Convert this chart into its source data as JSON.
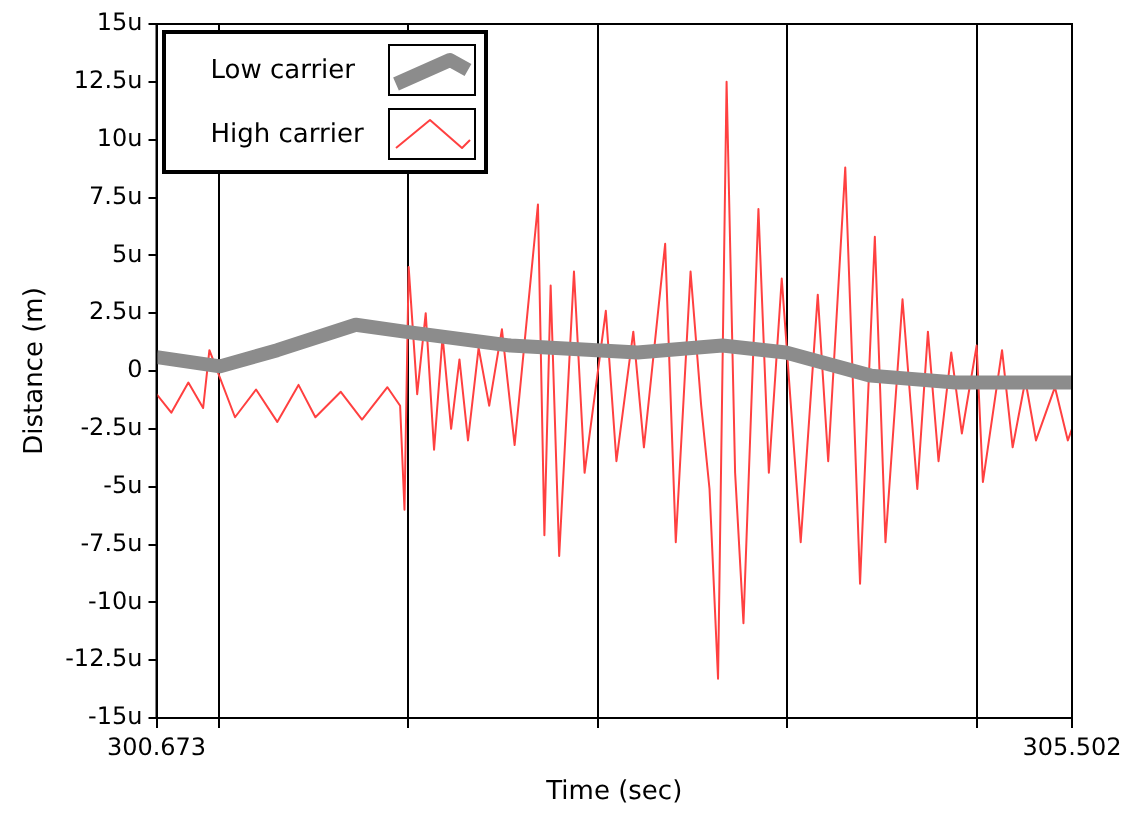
{
  "chart_data": {
    "type": "line",
    "xlabel": "Time (sec)",
    "ylabel": "Distance (m)",
    "xlim": [
      300.673,
      305.502
    ],
    "xticks": [
      300.673,
      {
        "value": 301,
        "label": null
      },
      {
        "value": 302,
        "label": null
      },
      {
        "value": 303,
        "label": null
      },
      {
        "value": 304,
        "label": null
      },
      {
        "value": 305,
        "label": null
      },
      305.502
    ],
    "ylim": [
      -15,
      15
    ],
    "yticks": [
      {
        "value": -15,
        "label": "-15u"
      },
      {
        "value": -12.5,
        "label": "-12.5u"
      },
      {
        "value": -10,
        "label": "-10u"
      },
      {
        "value": -7.5,
        "label": "-7.5u"
      },
      {
        "value": -5,
        "label": "-5u"
      },
      {
        "value": -2.5,
        "label": "-2.5u"
      },
      0,
      {
        "value": 2.5,
        "label": "2.5u"
      },
      {
        "value": 5,
        "label": "5u"
      },
      {
        "value": 7.5,
        "label": "7.5u"
      },
      {
        "value": 10,
        "label": "10u"
      },
      {
        "value": 12.5,
        "label": "12.5u"
      },
      {
        "value": 15,
        "label": "15u"
      }
    ],
    "grid": "x",
    "legend": "top left",
    "marker": "none",
    "line_style": "solid",
    "series": [
      {
        "name": "Low carrier",
        "color": "#8c8c8c",
        "x": [
          300.673,
          301.008,
          301.31,
          301.724,
          301.981,
          302.54,
          303.21,
          303.658,
          303.993,
          304.44,
          304.887,
          305.502
        ],
        "values": [
          0.6,
          0.2,
          0.9,
          2,
          1.7,
          1.1,
          0.8,
          1.1,
          0.8,
          -0.2,
          -0.5,
          -0.5
        ]
      },
      {
        "name": "High carrier",
        "color": "#ff4040",
        "x": [
          300.673,
          300.751,
          300.841,
          300.919,
          300.952,
          301.087,
          301.198,
          301.31,
          301.422,
          301.511,
          301.645,
          301.757,
          301.891,
          301.958,
          301.981,
          302.003,
          302.048,
          302.093,
          302.137,
          302.182,
          302.227,
          302.271,
          302.316,
          302.372,
          302.428,
          302.495,
          302.562,
          302.685,
          302.719,
          302.752,
          302.797,
          302.875,
          302.931,
          303.043,
          303.099,
          303.188,
          303.244,
          303.356,
          303.412,
          303.49,
          303.546,
          303.59,
          303.635,
          303.68,
          303.725,
          303.769,
          303.848,
          303.903,
          303.971,
          304.071,
          304.161,
          304.216,
          304.306,
          304.384,
          304.462,
          304.518,
          304.608,
          304.686,
          304.742,
          304.798,
          304.865,
          304.921,
          304.999,
          305.032,
          305.133,
          305.189,
          305.256,
          305.312,
          305.412,
          305.48,
          305.502
        ],
        "values": [
          -1,
          -1.8,
          -0.5,
          -1.6,
          0.9,
          -2,
          -0.8,
          -2.2,
          -0.6,
          -2,
          -0.9,
          -2.1,
          -0.7,
          -1.5,
          -6,
          4.5,
          -1,
          2.5,
          -3.4,
          1.5,
          -2.5,
          0.5,
          -3,
          1,
          -1.5,
          1.8,
          -3.2,
          7.2,
          -7.1,
          3.7,
          -8,
          4.3,
          -4.4,
          2.6,
          -3.9,
          1.7,
          -3.3,
          5.5,
          -7.4,
          4.3,
          -1.5,
          -5.1,
          -13.3,
          12.5,
          -4.4,
          -10.9,
          7,
          -4.4,
          4,
          -7.4,
          3.3,
          -3.9,
          8.8,
          -9.2,
          5.8,
          -7.4,
          3.1,
          -5.1,
          1.7,
          -3.9,
          0.8,
          -2.7,
          1.1,
          -4.8,
          0.9,
          -3.3,
          -0.4,
          -3,
          -0.7,
          -3,
          -2.5
        ]
      }
    ]
  }
}
